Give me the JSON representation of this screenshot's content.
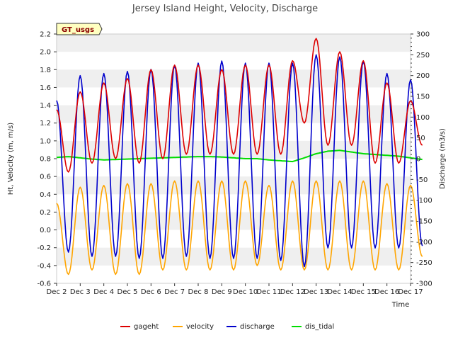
{
  "chart_data": {
    "type": "line",
    "title": "Jersey Island Height, Velocity, Discharge",
    "badge": "GT_usgs",
    "xlabel": "Time",
    "ylabel_left": "Ht, Velocity (m, m/s)",
    "ylabel_right": "Discharge (m3/s)",
    "x_range_days": [
      2,
      17
    ],
    "xtick_labels": [
      "Dec 2",
      "Dec 3",
      "Dec 4",
      "Dec 5",
      "Dec 6",
      "Dec 7",
      "Dec 8",
      "Dec 9",
      "Dec 10",
      "Dec 11",
      "Dec 12",
      "Dec 13",
      "Dec 14",
      "Dec 15",
      "Dec 16",
      "Dec 17"
    ],
    "ylim_left": [
      -0.6,
      2.2
    ],
    "yticks_left": [
      "-0.6",
      "-0.4",
      "-0.2",
      "0.0",
      "0.2",
      "0.4",
      "0.6",
      "0.8",
      "1.0",
      "1.2",
      "1.4",
      "1.6",
      "1.8",
      "2.0",
      "2.2"
    ],
    "ylim_right": [
      -300,
      300
    ],
    "yticks_right": [
      "-300",
      "-250",
      "-200",
      "-150",
      "-100",
      "-50",
      "0",
      "50",
      "100",
      "150",
      "200",
      "250",
      "300"
    ],
    "series": [
      {
        "name": "gageht",
        "color": "#dd0000",
        "axis": "left",
        "sample_step_days": 0.5,
        "values": [
          1.35,
          0.65,
          1.55,
          0.75,
          1.65,
          0.8,
          1.7,
          0.75,
          1.8,
          0.8,
          1.85,
          0.85,
          1.85,
          0.85,
          1.8,
          0.85,
          1.85,
          0.85,
          1.85,
          0.85,
          1.9,
          1.2,
          2.15,
          0.95,
          2.0,
          0.95,
          1.9,
          0.75,
          1.65,
          0.75,
          1.45,
          0.95
        ]
      },
      {
        "name": "velocity",
        "color": "#ffa500",
        "axis": "left",
        "sample_step_days": 0.5,
        "values": [
          0.3,
          -0.5,
          0.48,
          -0.45,
          0.5,
          -0.5,
          0.52,
          -0.5,
          0.52,
          -0.45,
          0.55,
          -0.45,
          0.55,
          -0.45,
          0.55,
          -0.45,
          0.55,
          -0.4,
          0.5,
          -0.45,
          0.55,
          -0.45,
          0.55,
          -0.45,
          0.55,
          -0.45,
          0.55,
          -0.45,
          0.52,
          -0.45,
          0.5,
          -0.3
        ]
      },
      {
        "name": "discharge",
        "color": "#0000cc",
        "axis": "right",
        "sample_step_days": 0.5,
        "values": [
          140,
          -225,
          200,
          -235,
          205,
          -235,
          210,
          -240,
          215,
          -240,
          225,
          -235,
          230,
          -240,
          235,
          -240,
          230,
          -240,
          230,
          -245,
          230,
          -260,
          250,
          -215,
          245,
          -215,
          235,
          -215,
          205,
          -215,
          190,
          -210
        ]
      },
      {
        "name": "dis_tidal",
        "color": "#00dd00",
        "axis": "right",
        "sample_step_days": 0.5,
        "values": [
          3,
          5,
          2,
          -1,
          -3,
          -2,
          -1,
          0,
          1,
          2,
          3,
          4,
          5,
          5,
          4,
          2,
          0,
          0,
          -3,
          -5,
          -7,
          2,
          12,
          18,
          20,
          16,
          12,
          10,
          8,
          6,
          2,
          -2
        ]
      }
    ],
    "legend": {
      "position": "bottom",
      "entries": [
        "gageht",
        "velocity",
        "discharge",
        "dis_tidal"
      ]
    },
    "grid": "horizontal bands"
  }
}
